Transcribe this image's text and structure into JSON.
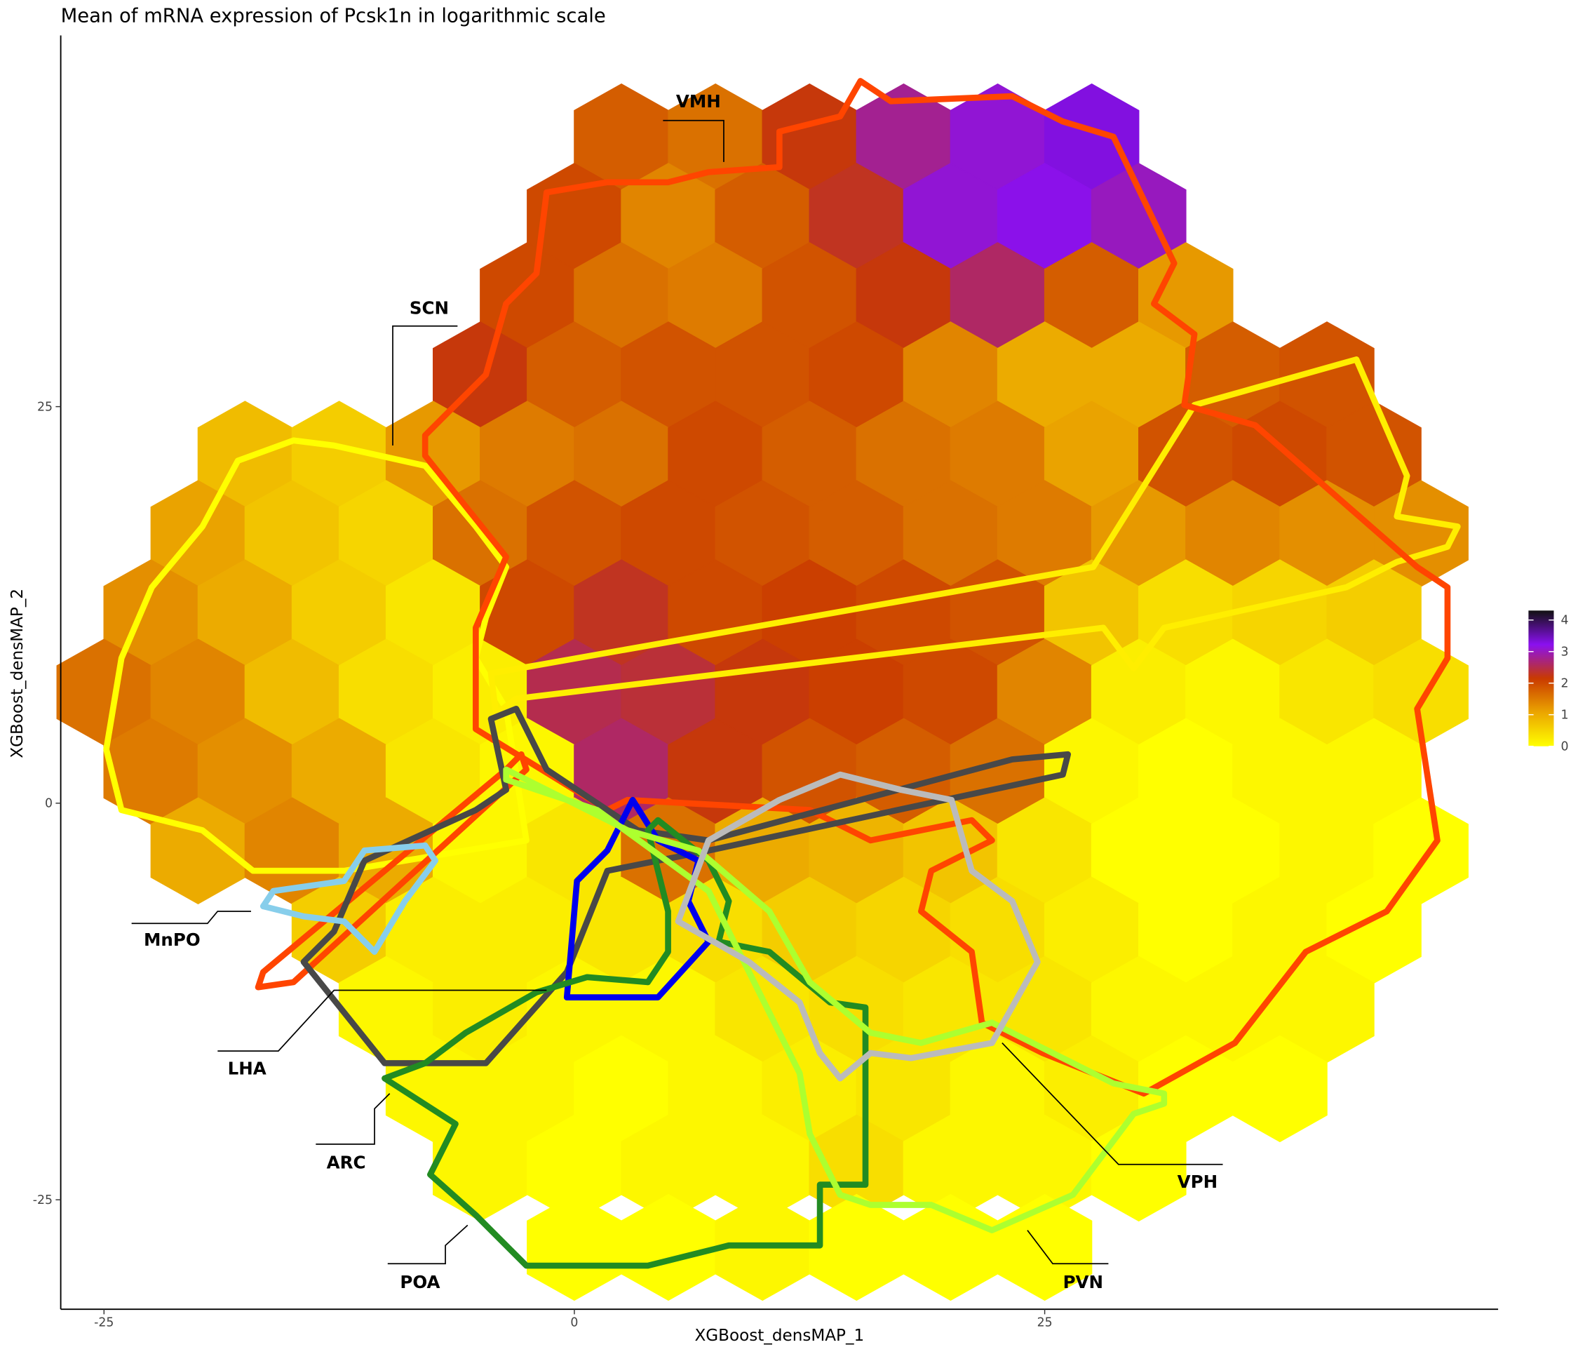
{
  "chart_data": {
    "type": "hexbin",
    "title": "Mean of mRNA expression of Pcsk1n in logarithmic scale",
    "x_label": "XGBoost_densMAP_1",
    "y_label": "XGBoost_densMAP_2",
    "xlim": [
      -27.3,
      49.1
    ],
    "ylim": [
      -31.9,
      48.4
    ],
    "xticks": [
      -25,
      0,
      25
    ],
    "yticks": [
      -25,
      0,
      25
    ],
    "bin_width": 5,
    "clim": [
      0,
      4.3
    ],
    "cticks": [
      0,
      1,
      2,
      3,
      4
    ],
    "colors": [
      "#ffff00",
      "#eba500",
      "#c93a00",
      "#8a10f0",
      "#111111"
    ],
    "annotations": [
      "VMH",
      "SCN",
      "MnPO",
      "LHA",
      "ARC",
      "POA",
      "VPH",
      "PVN"
    ],
    "hex_rows": [
      {
        "y": 42,
        "x0": 2.5,
        "values": [
          1.8,
          1.6,
          2.2,
          2.8,
          3.1,
          3.3
        ]
      },
      {
        "y": 37,
        "x0": 0,
        "values": [
          2.0,
          1.4,
          1.8,
          2.3,
          3.1,
          3.2,
          3.0
        ]
      },
      {
        "y": 32,
        "x0": -2.5,
        "values": [
          2.0,
          1.6,
          1.5,
          1.9,
          2.2,
          2.6,
          1.8,
          1.2
        ]
      },
      {
        "y": 27,
        "x0": -5,
        "values": [
          2.2,
          1.8,
          1.9,
          1.9,
          2.0,
          1.4,
          1.0,
          1.0,
          1.8,
          1.9
        ]
      },
      {
        "y": 22,
        "x0": -17.5,
        "values": [
          0.8,
          0.6,
          1.2,
          1.5,
          1.6,
          2.0,
          1.8,
          1.6,
          1.5,
          1.1,
          1.9,
          2.0,
          1.9
        ]
      },
      {
        "y": 17,
        "x0": -20,
        "values": [
          1.1,
          0.7,
          0.5,
          1.6,
          1.9,
          2.0,
          1.9,
          1.8,
          1.6,
          1.5,
          1.2,
          1.4,
          1.3,
          1.3
        ]
      },
      {
        "y": 12,
        "x0": -22.5,
        "values": [
          1.3,
          1.0,
          0.6,
          0.3,
          2.0,
          2.3,
          2.0,
          2.1,
          2.0,
          1.9,
          0.7,
          0.4,
          0.5,
          0.6
        ]
      },
      {
        "y": 7,
        "x0": -25,
        "values": [
          1.6,
          1.4,
          0.8,
          0.4,
          0.2,
          2.5,
          2.4,
          2.2,
          2.1,
          2.0,
          1.4,
          0.2,
          0.1,
          0.3,
          0.4
        ]
      },
      {
        "y": 2,
        "x0": -22.5,
        "values": [
          1.5,
          1.3,
          1.0,
          0.3,
          0.1,
          2.6,
          2.2,
          1.9,
          1.8,
          1.6,
          0.1,
          0.0,
          0.1,
          0.1
        ]
      },
      {
        "y": -3,
        "x0": -20,
        "values": [
          1.0,
          1.4,
          1.0,
          0.1,
          0.3,
          1.6,
          1.0,
          0.9,
          0.7,
          0.3,
          0.0,
          0.0,
          0.1,
          0.0
        ]
      },
      {
        "y": -8,
        "x0": -12.5,
        "values": [
          0.6,
          0.2,
          0.2,
          0.3,
          0.4,
          0.6,
          0.5,
          0.4,
          0.2,
          0.0,
          0.1,
          0.0
        ]
      },
      {
        "y": -13,
        "x0": -10,
        "values": [
          0.1,
          0.2,
          0.1,
          0.1,
          0.3,
          0.4,
          0.3,
          0.3,
          0.1,
          0.1,
          0.1
        ]
      },
      {
        "y": -18,
        "x0": -7.5,
        "values": [
          0.1,
          0.1,
          0.0,
          0.1,
          0.2,
          0.3,
          0.1,
          0.2,
          0.0,
          0.0
        ]
      },
      {
        "y": -23,
        "x0": -5,
        "values": [
          0.1,
          0.0,
          0.1,
          0.1,
          0.4,
          0.1,
          0.1,
          0.0
        ]
      },
      {
        "y": -28,
        "x0": 0,
        "values": [
          0.0,
          0.0,
          0.1,
          0.0,
          0.0,
          0.0
        ]
      }
    ]
  }
}
